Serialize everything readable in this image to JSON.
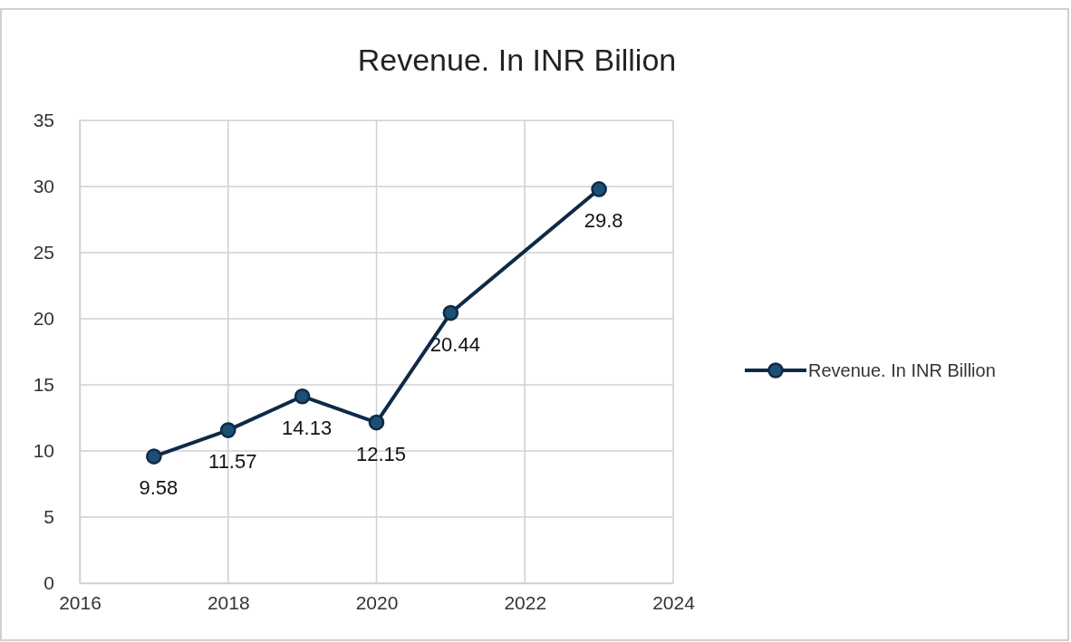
{
  "chart_data": {
    "type": "line",
    "title": "Revenue. In INR Billion",
    "x": [
      2017,
      2018,
      2019,
      2020,
      2021,
      2023
    ],
    "series": [
      {
        "name": "Revenue. In INR Billion",
        "color": "#0e2a47",
        "values": [
          9.58,
          11.57,
          14.13,
          12.15,
          20.44,
          29.8
        ]
      }
    ],
    "xlim": [
      2016,
      2024
    ],
    "xticks": [
      2016,
      2018,
      2020,
      2022,
      2024
    ],
    "ylim": [
      0,
      35
    ],
    "yticks": [
      0,
      5,
      10,
      15,
      20,
      25,
      30,
      35
    ],
    "grid": true,
    "legend": "right",
    "marker": "circle",
    "line_style": "solid",
    "data_labels": true
  }
}
